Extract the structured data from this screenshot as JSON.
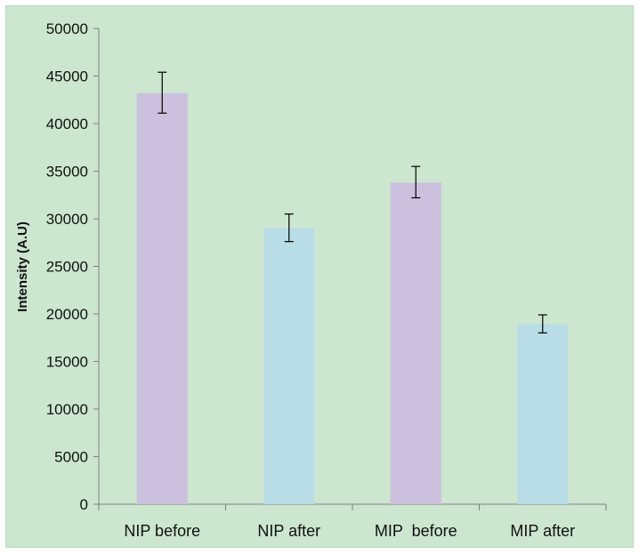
{
  "chart_data": {
    "type": "bar",
    "title": "",
    "xlabel": "",
    "ylabel": "Intensity (A.U)",
    "ylim": [
      0,
      50000
    ],
    "yticks": [
      0,
      5000,
      10000,
      15000,
      20000,
      25000,
      30000,
      35000,
      40000,
      45000,
      50000
    ],
    "grid": false,
    "legend": "none",
    "categories": [
      "NIP before",
      "NIP after",
      "MIP  before",
      "MIP after"
    ],
    "values": [
      43200,
      29000,
      33800,
      18900
    ],
    "error_low": [
      41100,
      27600,
      32200,
      18000
    ],
    "error_high": [
      45400,
      30500,
      35500,
      19900
    ],
    "bar_colors": [
      "#cbc0dd",
      "#b8dde6",
      "#cbc0dd",
      "#b8dde6"
    ],
    "background_color": "#cce6d0"
  }
}
